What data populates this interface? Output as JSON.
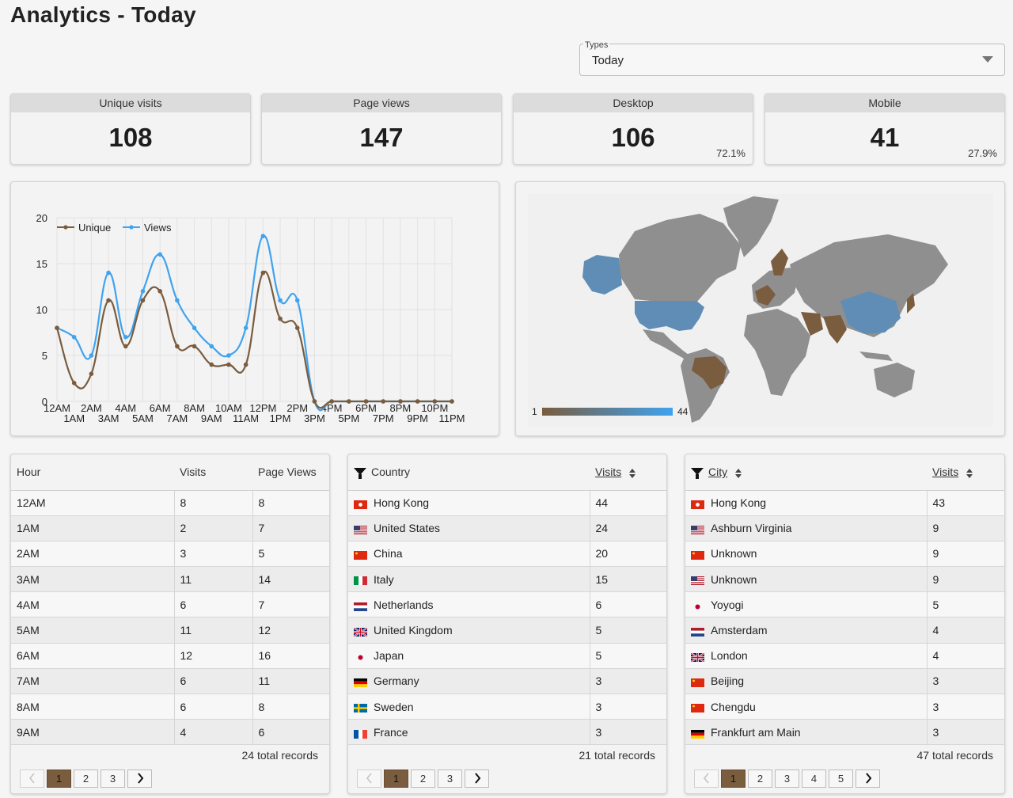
{
  "page": {
    "title": "Analytics - Today"
  },
  "types": {
    "label": "Types",
    "value": "Today"
  },
  "stats": [
    {
      "label": "Unique visits",
      "value": "108",
      "pct": ""
    },
    {
      "label": "Page views",
      "value": "147",
      "pct": ""
    },
    {
      "label": "Desktop",
      "value": "106",
      "pct": "72.1%"
    },
    {
      "label": "Mobile",
      "value": "41",
      "pct": "27.9%"
    }
  ],
  "colors": {
    "unique": "#7a5c3e",
    "views": "#3fa3ef",
    "map_low": "#7a5c3e",
    "map_high": "#3fa3ef",
    "land": "#8f8f8f"
  },
  "chart_data": {
    "type": "line",
    "categories": [
      "12AM",
      "1AM",
      "2AM",
      "3AM",
      "4AM",
      "5AM",
      "6AM",
      "7AM",
      "8AM",
      "9AM",
      "10AM",
      "11AM",
      "12PM",
      "1PM",
      "2PM",
      "3PM",
      "4PM",
      "5PM",
      "6PM",
      "7PM",
      "8PM",
      "9PM",
      "10PM",
      "11PM"
    ],
    "series": [
      {
        "name": "Unique",
        "values": [
          8,
          2,
          3,
          11,
          6,
          11,
          12,
          6,
          6,
          4,
          4,
          4,
          14,
          9,
          8,
          0,
          0,
          0,
          0,
          0,
          0,
          0,
          0,
          0
        ]
      },
      {
        "name": "Views",
        "values": [
          8,
          7,
          5,
          14,
          7,
          12,
          16,
          11,
          8,
          6,
          5,
          8,
          18,
          11,
          11,
          0,
          0,
          0,
          0,
          0,
          0,
          0,
          0,
          0
        ]
      }
    ],
    "yticks": [
      "0",
      "5",
      "10",
      "15",
      "20"
    ],
    "ylim": [
      0,
      20
    ],
    "legend": "top-left"
  },
  "map": {
    "min_label": "1",
    "max_label": "44"
  },
  "hours_table": {
    "headers": {
      "hour": "Hour",
      "visits": "Visits",
      "views": "Page Views"
    },
    "rows": [
      {
        "hour": "12AM",
        "visits": "8",
        "views": "8"
      },
      {
        "hour": "1AM",
        "visits": "2",
        "views": "7"
      },
      {
        "hour": "2AM",
        "visits": "3",
        "views": "5"
      },
      {
        "hour": "3AM",
        "visits": "11",
        "views": "14"
      },
      {
        "hour": "4AM",
        "visits": "6",
        "views": "7"
      },
      {
        "hour": "5AM",
        "visits": "11",
        "views": "12"
      },
      {
        "hour": "6AM",
        "visits": "12",
        "views": "16"
      },
      {
        "hour": "7AM",
        "visits": "6",
        "views": "11"
      },
      {
        "hour": "8AM",
        "visits": "6",
        "views": "8"
      },
      {
        "hour": "9AM",
        "visits": "4",
        "views": "6"
      }
    ],
    "records": "24 total records",
    "pages": [
      "1",
      "2",
      "3"
    ]
  },
  "country_table": {
    "headers": {
      "country": "Country",
      "visits": "Visits"
    },
    "rows": [
      {
        "flag": "hk",
        "name": "Hong Kong",
        "visits": "44"
      },
      {
        "flag": "us",
        "name": "United States",
        "visits": "24"
      },
      {
        "flag": "cn",
        "name": "China",
        "visits": "20"
      },
      {
        "flag": "it",
        "name": "Italy",
        "visits": "15"
      },
      {
        "flag": "nl",
        "name": "Netherlands",
        "visits": "6"
      },
      {
        "flag": "gb",
        "name": "United Kingdom",
        "visits": "5"
      },
      {
        "flag": "jp",
        "name": "Japan",
        "visits": "5"
      },
      {
        "flag": "de",
        "name": "Germany",
        "visits": "3"
      },
      {
        "flag": "se",
        "name": "Sweden",
        "visits": "3"
      },
      {
        "flag": "fr",
        "name": "France",
        "visits": "3"
      }
    ],
    "records": "21 total records",
    "pages": [
      "1",
      "2",
      "3"
    ]
  },
  "city_table": {
    "headers": {
      "city": "City",
      "visits": "Visits"
    },
    "rows": [
      {
        "flag": "hk",
        "name": "Hong Kong",
        "visits": "43"
      },
      {
        "flag": "us",
        "name": "Ashburn Virginia",
        "visits": "9"
      },
      {
        "flag": "cn",
        "name": "Unknown",
        "visits": "9"
      },
      {
        "flag": "us",
        "name": "Unknown",
        "visits": "9"
      },
      {
        "flag": "jp",
        "name": "Yoyogi",
        "visits": "5"
      },
      {
        "flag": "nl",
        "name": "Amsterdam",
        "visits": "4"
      },
      {
        "flag": "gb",
        "name": "London",
        "visits": "4"
      },
      {
        "flag": "cn",
        "name": "Beijing",
        "visits": "3"
      },
      {
        "flag": "cn",
        "name": "Chengdu",
        "visits": "3"
      },
      {
        "flag": "de",
        "name": "Frankfurt am Main",
        "visits": "3"
      }
    ],
    "records": "47 total records",
    "pages": [
      "1",
      "2",
      "3",
      "4",
      "5"
    ]
  }
}
